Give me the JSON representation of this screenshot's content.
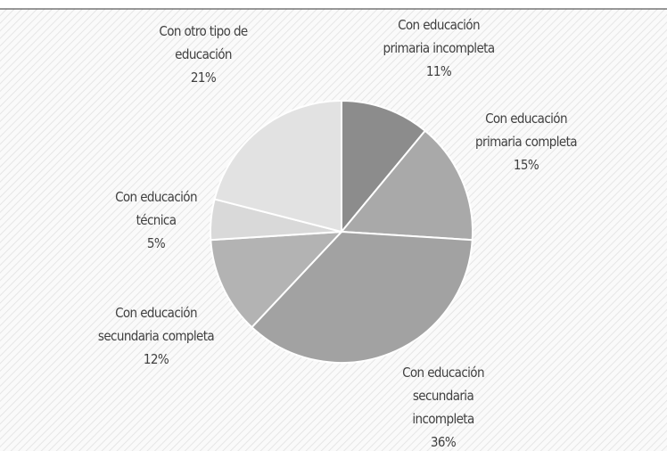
{
  "chart_data": {
    "type": "pie",
    "categories": [
      "Con educación primaria incompleta",
      "Con educación primaria completa",
      "Con educación secundaria incompleta",
      "Con educación secundaria completa",
      "Con educación técnica",
      "Con otro tipo de educación"
    ],
    "values": [
      11,
      15,
      36,
      12,
      5,
      21
    ],
    "value_labels": [
      "11%",
      "15%",
      "36%",
      "12%",
      "5%",
      "21%"
    ],
    "colors": [
      "#8c8c8c",
      "#a9a9a9",
      "#a2a2a2",
      "#b3b3b3",
      "#d9d9d9",
      "#e2e2e2"
    ]
  }
}
